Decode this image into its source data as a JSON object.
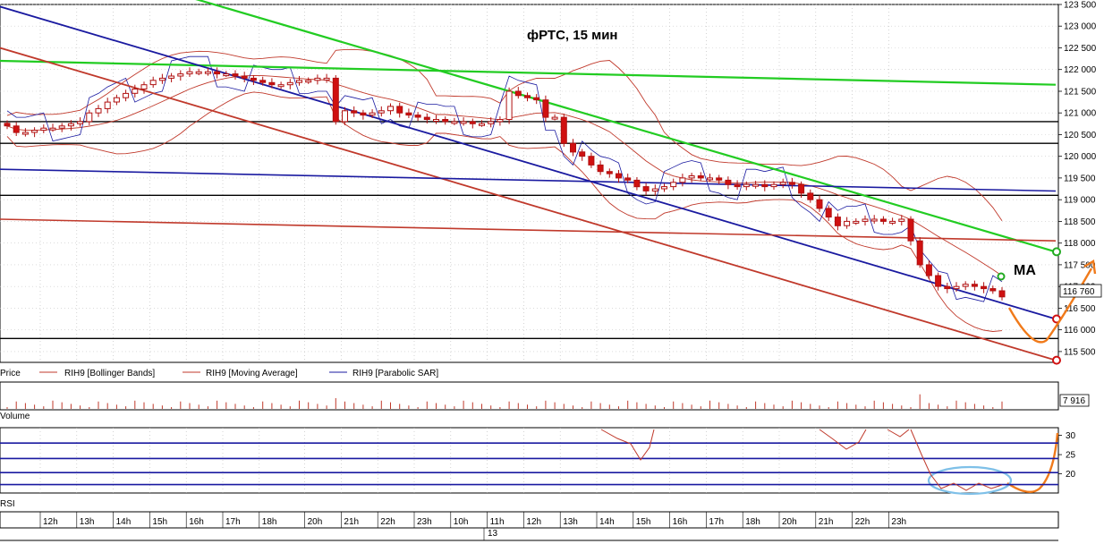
{
  "chart_data": {
    "type": "candlestick",
    "title": "фРТС,  15 мин",
    "annotation": "MA",
    "price_axis": {
      "ticks": [
        "123 500",
        "123 000",
        "122 500",
        "122 000",
        "121 500",
        "121 000",
        "120 500",
        "120 000",
        "119 500",
        "119 000",
        "118 500",
        "118 000",
        "117 500",
        "117 000",
        "116 500",
        "116 000",
        "115 500"
      ],
      "ylim": [
        115250,
        123500
      ],
      "last_price_label": "116 760",
      "last_price": 116760
    },
    "legend": [
      {
        "name": "Price",
        "color": "#000000"
      },
      {
        "name": "RIH9 [Bollinger Bands]",
        "color": "#c0392b"
      },
      {
        "name": "RIH9 [Moving Average]",
        "color": "#c0392b"
      },
      {
        "name": "RIH9 [Parabolic SAR]",
        "color": "#1a1aa0"
      }
    ],
    "volume_panel": {
      "label": "Volume",
      "last_value": "7 916"
    },
    "rsi_panel": {
      "label": "RSI",
      "ticks": [
        "30",
        "25",
        "20"
      ],
      "ylim": [
        15,
        32
      ],
      "levels": [
        28,
        24,
        20.3,
        17.2
      ]
    },
    "time_axis": {
      "labels": [
        "12h",
        "13h",
        "14h",
        "15h",
        "16h",
        "17h",
        "18h",
        "20h",
        "21h",
        "22h",
        "23h",
        "10h",
        "11h",
        "12h",
        "13h",
        "14h",
        "15h",
        "16h",
        "17h",
        "18h",
        "20h",
        "21h",
        "22h",
        "23h"
      ],
      "date_label": "13"
    },
    "horizontal_levels": [
      120800,
      120300,
      119100,
      115800
    ],
    "close": [
      120700,
      120550,
      120550,
      120600,
      120650,
      120650,
      120700,
      120750,
      120800,
      121000,
      121100,
      121250,
      121350,
      121450,
      121550,
      121650,
      121750,
      121800,
      121850,
      121900,
      121950,
      121950,
      121950,
      121900,
      121900,
      121850,
      121800,
      121750,
      121700,
      121650,
      121650,
      121700,
      121750,
      121750,
      121800,
      121800,
      120800,
      121050,
      121000,
      120950,
      121000,
      121050,
      121150,
      121000,
      120950,
      120900,
      120850,
      120850,
      120800,
      120800,
      120800,
      120750,
      120750,
      120800,
      120850,
      121500,
      121400,
      121350,
      121300,
      120900,
      120900,
      120300,
      120100,
      120000,
      119800,
      119650,
      119600,
      119500,
      119450,
      119300,
      119200,
      119250,
      119300,
      119400,
      119500,
      119550,
      119500,
      119500,
      119450,
      119350,
      119300,
      119350,
      119350,
      119300,
      119350,
      119400,
      119350,
      119150,
      119000,
      118800,
      118600,
      118400,
      118500,
      118500,
      118550,
      118550,
      118500,
      118500,
      118550,
      118050,
      117500,
      117250,
      117000,
      116950,
      117000,
      117050,
      117000,
      116950,
      116900,
      116760
    ],
    "lines": {
      "green_upper": [
        [
          0,
          124950
        ],
        [
          1180,
          117800
        ]
      ],
      "green_horizontal": [
        [
          0,
          122200
        ],
        [
          1180,
          121650
        ]
      ],
      "blue_channel": [
        [
          0,
          123450
        ],
        [
          1180,
          116250
        ]
      ],
      "red_channel": [
        [
          0,
          122500
        ],
        [
          1180,
          115300
        ]
      ],
      "blue_horizontal": [
        [
          0,
          119700
        ],
        [
          1180,
          119200
        ]
      ],
      "red_horizontal": [
        [
          0,
          118550
        ],
        [
          1180,
          118050
        ]
      ]
    }
  }
}
